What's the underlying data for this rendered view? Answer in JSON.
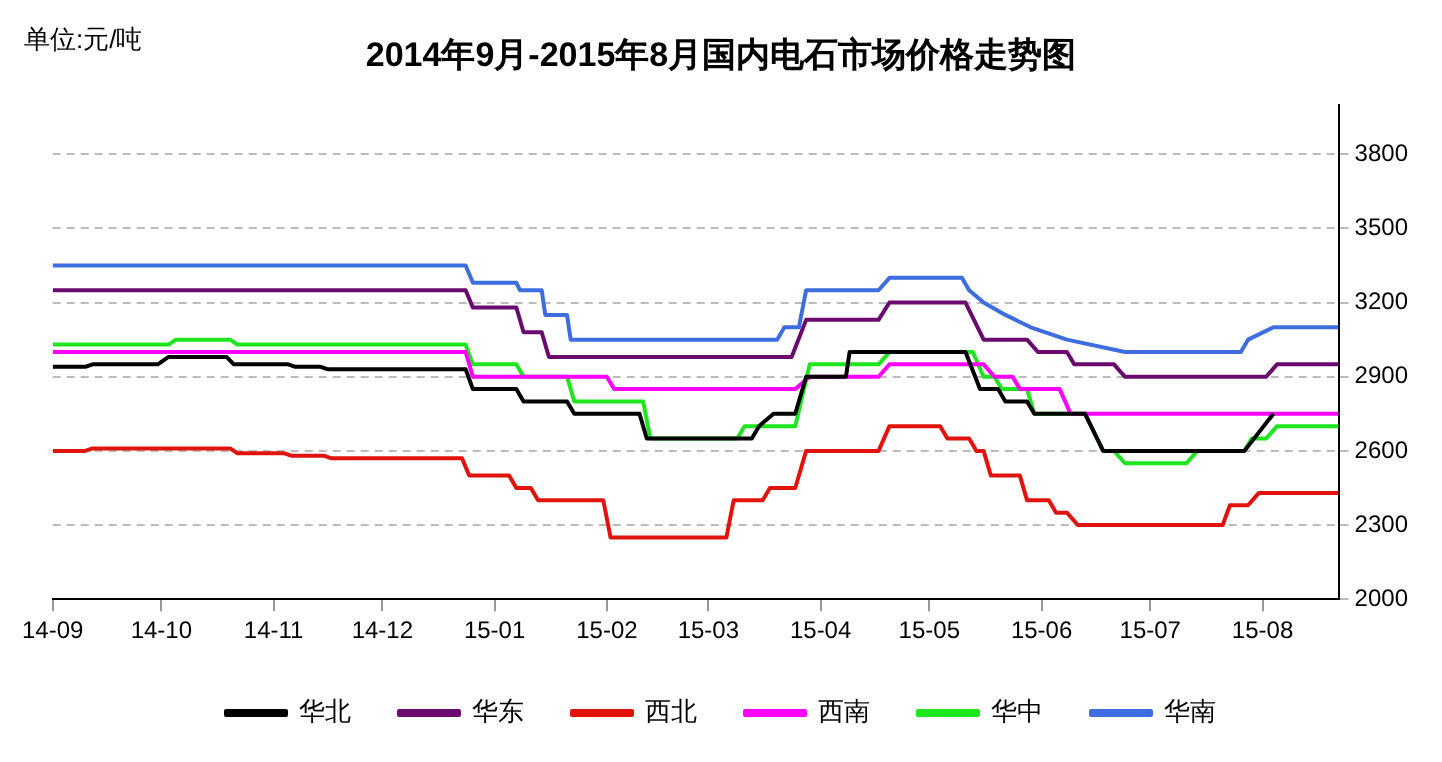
{
  "chart_data": {
    "type": "line",
    "title": "2014年9月-2015年8月国内电石市场价格走势图",
    "annotations": [
      "单位:元/吨"
    ],
    "ylim": [
      2000,
      4000
    ],
    "yticks": [
      2000,
      2300,
      2600,
      2900,
      3200,
      3500,
      3800
    ],
    "xlim": [
      "2014-09-01",
      "2015-08-22"
    ],
    "xticks": [
      {
        "value": "2014-09-01",
        "label": "14-09"
      },
      {
        "value": "2014-10-01",
        "label": "14-10"
      },
      {
        "value": "2014-11-01",
        "label": "14-11"
      },
      {
        "value": "2014-12-01",
        "label": "14-12"
      },
      {
        "value": "2015-01-01",
        "label": "15-01"
      },
      {
        "value": "2015-02-01",
        "label": "15-02"
      },
      {
        "value": "2015-03-01",
        "label": "15-03"
      },
      {
        "value": "2015-04-01",
        "label": "15-04"
      },
      {
        "value": "2015-05-01",
        "label": "15-05"
      },
      {
        "value": "2015-06-01",
        "label": "15-06"
      },
      {
        "value": "2015-07-01",
        "label": "15-07"
      },
      {
        "value": "2015-08-01",
        "label": "15-08"
      }
    ],
    "grid": "y",
    "legend": "bottom",
    "marker": "none",
    "line_style": "solid",
    "series": [
      {
        "name": "华北",
        "color": "#000000",
        "x": [
          "2014-09-01",
          "2014-09-10",
          "2014-09-12",
          "2014-09-30",
          "2014-10-03",
          "2014-10-19",
          "2014-10-21",
          "2014-11-05",
          "2014-11-07",
          "2014-11-14",
          "2014-11-16",
          "2014-12-24",
          "2014-12-26",
          "2015-01-07",
          "2015-01-09",
          "2015-01-21",
          "2015-01-23",
          "2015-02-10",
          "2015-02-12",
          "2015-03-13",
          "2015-03-15",
          "2015-03-19",
          "2015-03-25",
          "2015-03-28",
          "2015-04-08",
          "2015-04-09",
          "2015-05-11",
          "2015-05-15",
          "2015-05-20",
          "2015-05-22",
          "2015-05-28",
          "2015-05-30",
          "2015-06-13",
          "2015-06-18",
          "2015-07-27",
          "2015-08-04"
        ],
        "values": [
          2940,
          2940,
          2950,
          2950,
          2980,
          2980,
          2950,
          2950,
          2940,
          2940,
          2930,
          2930,
          2850,
          2850,
          2800,
          2800,
          2750,
          2750,
          2650,
          2650,
          2700,
          2750,
          2750,
          2900,
          2900,
          3000,
          3000,
          2850,
          2850,
          2800,
          2800,
          2750,
          2750,
          2600,
          2600,
          2750
        ]
      },
      {
        "name": "华东",
        "color": "#6a0a6e",
        "x": [
          "2014-09-01",
          "2014-12-24",
          "2014-12-26",
          "2015-01-07",
          "2015-01-09",
          "2015-01-14",
          "2015-01-16",
          "2015-03-24",
          "2015-03-28",
          "2015-04-17",
          "2015-04-20",
          "2015-05-11",
          "2015-05-16",
          "2015-05-28",
          "2015-05-31",
          "2015-06-08",
          "2015-06-10",
          "2015-06-21",
          "2015-06-24",
          "2015-08-02",
          "2015-08-05",
          "2015-08-22"
        ],
        "values": [
          3250,
          3250,
          3180,
          3180,
          3080,
          3080,
          2980,
          2980,
          3130,
          3130,
          3200,
          3200,
          3050,
          3050,
          3000,
          3000,
          2950,
          2950,
          2900,
          2900,
          2950,
          2950
        ]
      },
      {
        "name": "西北",
        "color": "#e0140c",
        "x": [
          "2014-09-01",
          "2014-09-10",
          "2014-09-12",
          "2014-10-20",
          "2014-10-22",
          "2014-11-04",
          "2014-11-06",
          "2014-11-15",
          "2014-11-17",
          "2014-12-23",
          "2014-12-25",
          "2015-01-05",
          "2015-01-07",
          "2015-01-11",
          "2015-01-13",
          "2015-01-31",
          "2015-02-02",
          "2015-03-06",
          "2015-03-08",
          "2015-03-16",
          "2015-03-18",
          "2015-03-25",
          "2015-03-28",
          "2015-04-17",
          "2015-04-20",
          "2015-05-04",
          "2015-05-06",
          "2015-05-12",
          "2015-05-14",
          "2015-05-16",
          "2015-05-18",
          "2015-05-26",
          "2015-05-28",
          "2015-06-03",
          "2015-06-05",
          "2015-06-08",
          "2015-06-11",
          "2015-07-21",
          "2015-07-23",
          "2015-07-28",
          "2015-07-31",
          "2015-08-22"
        ],
        "values": [
          2600,
          2600,
          2610,
          2610,
          2590,
          2590,
          2580,
          2580,
          2570,
          2570,
          2500,
          2500,
          2450,
          2450,
          2400,
          2400,
          2250,
          2250,
          2400,
          2400,
          2450,
          2450,
          2600,
          2600,
          2700,
          2700,
          2650,
          2650,
          2600,
          2600,
          2500,
          2500,
          2400,
          2400,
          2350,
          2350,
          2300,
          2300,
          2380,
          2380,
          2430,
          2430
        ]
      },
      {
        "name": "西南",
        "color": "#ff00ff",
        "x": [
          "2014-09-01",
          "2014-12-24",
          "2014-12-26",
          "2015-02-01",
          "2015-02-03",
          "2015-03-25",
          "2015-03-29",
          "2015-04-17",
          "2015-04-20",
          "2015-05-16",
          "2015-05-19",
          "2015-05-24",
          "2015-05-26",
          "2015-06-06",
          "2015-06-09",
          "2015-08-22"
        ],
        "values": [
          3000,
          3000,
          2900,
          2900,
          2850,
          2850,
          2900,
          2900,
          2950,
          2950,
          2900,
          2900,
          2850,
          2850,
          2750,
          2750
        ]
      },
      {
        "name": "华中",
        "color": "#1ee61e",
        "x": [
          "2014-09-01",
          "2014-10-03",
          "2014-10-05",
          "2014-10-20",
          "2014-10-22",
          "2014-12-24",
          "2014-12-26",
          "2015-01-07",
          "2015-01-09",
          "2015-01-21",
          "2015-01-23",
          "2015-02-11",
          "2015-02-13",
          "2015-03-09",
          "2015-03-11",
          "2015-03-25",
          "2015-03-29",
          "2015-04-17",
          "2015-04-20",
          "2015-05-13",
          "2015-05-16",
          "2015-05-19",
          "2015-05-21",
          "2015-05-28",
          "2015-05-30",
          "2015-06-13",
          "2015-06-18",
          "2015-06-21",
          "2015-06-24",
          "2015-07-11",
          "2015-07-14",
          "2015-07-27",
          "2015-07-29",
          "2015-08-02",
          "2015-08-05",
          "2015-08-22"
        ],
        "values": [
          3030,
          3030,
          3050,
          3050,
          3030,
          3030,
          2950,
          2950,
          2900,
          2900,
          2800,
          2800,
          2650,
          2650,
          2700,
          2700,
          2950,
          2950,
          3000,
          3000,
          2900,
          2900,
          2850,
          2850,
          2750,
          2750,
          2600,
          2600,
          2550,
          2550,
          2600,
          2600,
          2650,
          2650,
          2700,
          2700
        ]
      },
      {
        "name": "华南",
        "color": "#3c6ee0",
        "x": [
          "2014-09-01",
          "2014-12-24",
          "2014-12-26",
          "2015-01-07",
          "2015-01-08",
          "2015-01-14",
          "2015-01-15",
          "2015-01-21",
          "2015-01-22",
          "2015-03-20",
          "2015-03-22",
          "2015-03-26",
          "2015-03-28",
          "2015-04-17",
          "2015-04-20",
          "2015-05-10",
          "2015-05-12",
          "2015-05-16",
          "2015-05-22",
          "2015-05-29",
          "2015-06-08",
          "2015-06-24",
          "2015-07-26",
          "2015-07-28",
          "2015-08-04",
          "2015-08-22"
        ],
        "values": [
          3350,
          3350,
          3280,
          3280,
          3250,
          3250,
          3150,
          3150,
          3050,
          3050,
          3100,
          3100,
          3250,
          3250,
          3300,
          3300,
          3250,
          3200,
          3150,
          3100,
          3050,
          3000,
          3000,
          3050,
          3100,
          3100
        ]
      }
    ]
  }
}
